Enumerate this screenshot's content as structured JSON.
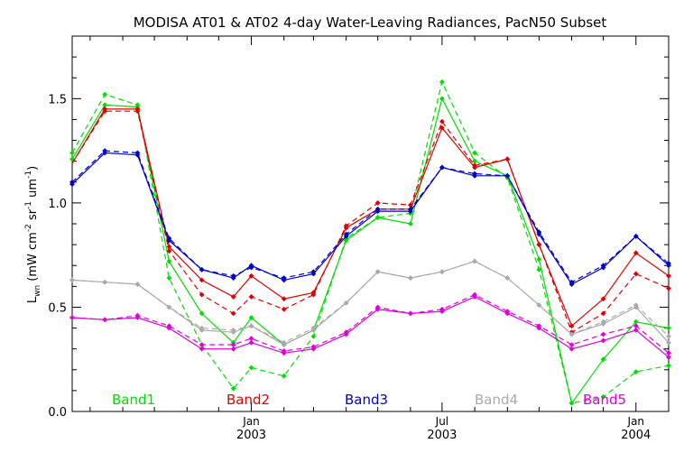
{
  "chart_data": {
    "type": "line",
    "title": "MODISA AT01 & AT02 4-day Water-Leaving Radiances, PacN50 Subset",
    "ylabel": {
      "base": "L",
      "sub": "wn",
      "units_open": " (mW cm",
      "exp1": "-2",
      "mid": " sr",
      "exp2": "-1",
      "mid2": " um",
      "exp3": "-1",
      "units_close": ")"
    },
    "ylim": [
      0,
      1.8
    ],
    "yticks": [
      "0.0",
      "0.5",
      "1.0",
      "1.5"
    ],
    "xlim": [
      "2002-07-15",
      "2004-02-01"
    ],
    "xtick_labels": [
      {
        "date": "2003-01-01",
        "month": "Jan",
        "year": "2003"
      },
      {
        "date": "2003-07-01",
        "month": "Jul",
        "year": "2003"
      },
      {
        "date": "2004-01-01",
        "month": "Jan",
        "year": "2004"
      }
    ],
    "x": [
      "2002-07-15",
      "2002-08-15",
      "2002-09-15",
      "2002-10-15",
      "2002-11-15",
      "2002-12-15",
      "2003-01-01",
      "2003-02-01",
      "2003-03-01",
      "2003-04-01",
      "2003-05-01",
      "2003-06-01",
      "2003-07-01",
      "2003-08-01",
      "2003-09-01",
      "2003-10-01",
      "2003-11-01",
      "2003-12-01",
      "2004-01-01",
      "2004-02-01"
    ],
    "series": [
      {
        "name": "Band1",
        "color": "#00dd00",
        "solid": [
          1.21,
          1.47,
          1.46,
          0.72,
          0.47,
          0.33,
          0.45,
          0.32,
          0.39,
          0.82,
          0.93,
          0.9,
          1.5,
          1.2,
          1.13,
          0.73,
          0.04,
          0.25,
          0.43,
          0.4
        ],
        "dashed": [
          1.24,
          1.52,
          1.47,
          0.64,
          0.32,
          0.11,
          0.21,
          0.17,
          0.36,
          0.83,
          0.93,
          0.95,
          1.58,
          1.24,
          1.12,
          0.68,
          0.04,
          0.07,
          0.19,
          0.22
        ]
      },
      {
        "name": "Band2",
        "color": "#dd0000",
        "solid": [
          1.19,
          1.45,
          1.45,
          0.79,
          0.63,
          0.55,
          0.65,
          0.54,
          0.57,
          0.88,
          0.97,
          0.97,
          1.36,
          1.17,
          1.21,
          0.8,
          0.41,
          0.54,
          0.76,
          0.65
        ],
        "dashed": [
          1.19,
          1.44,
          1.44,
          0.77,
          0.56,
          0.47,
          0.55,
          0.49,
          0.56,
          0.89,
          1.0,
          0.99,
          1.39,
          1.18,
          1.21,
          0.8,
          0.38,
          0.47,
          0.66,
          0.59
        ],
        "markers_from": 1
      },
      {
        "name": "Band3",
        "color": "#0000cc",
        "solid": [
          1.09,
          1.24,
          1.23,
          0.82,
          0.68,
          0.64,
          0.7,
          0.63,
          0.66,
          0.84,
          0.96,
          0.96,
          1.17,
          1.13,
          1.13,
          0.85,
          0.61,
          0.69,
          0.84,
          0.7
        ],
        "dashed": [
          1.1,
          1.25,
          1.24,
          0.83,
          0.68,
          0.65,
          0.69,
          0.64,
          0.67,
          0.85,
          0.97,
          0.97,
          1.17,
          1.14,
          1.13,
          0.86,
          0.62,
          0.7,
          0.84,
          0.71
        ]
      },
      {
        "name": "Band4",
        "color": "#aaaaaa",
        "solid": [
          0.63,
          0.62,
          0.61,
          0.5,
          0.39,
          0.38,
          0.41,
          0.32,
          0.39,
          0.52,
          0.67,
          0.64,
          0.67,
          0.72,
          0.64,
          0.51,
          0.37,
          0.42,
          0.5,
          0.33
        ],
        "dashed": [
          0.63,
          0.62,
          0.61,
          0.5,
          0.4,
          0.39,
          0.41,
          0.33,
          0.4,
          0.52,
          0.67,
          0.64,
          0.67,
          0.72,
          0.64,
          0.51,
          0.37,
          0.43,
          0.51,
          0.36
        ]
      },
      {
        "name": "Band5",
        "color": "#dd00dd",
        "solid": [
          0.45,
          0.44,
          0.45,
          0.4,
          0.3,
          0.3,
          0.33,
          0.28,
          0.3,
          0.37,
          0.49,
          0.47,
          0.48,
          0.55,
          0.47,
          0.4,
          0.3,
          0.34,
          0.39,
          0.26
        ],
        "dashed": [
          0.45,
          0.44,
          0.46,
          0.41,
          0.32,
          0.32,
          0.35,
          0.29,
          0.31,
          0.38,
          0.5,
          0.47,
          0.49,
          0.56,
          0.48,
          0.41,
          0.32,
          0.37,
          0.41,
          0.28
        ]
      }
    ],
    "legend_placement": "bottom",
    "grid": false
  }
}
